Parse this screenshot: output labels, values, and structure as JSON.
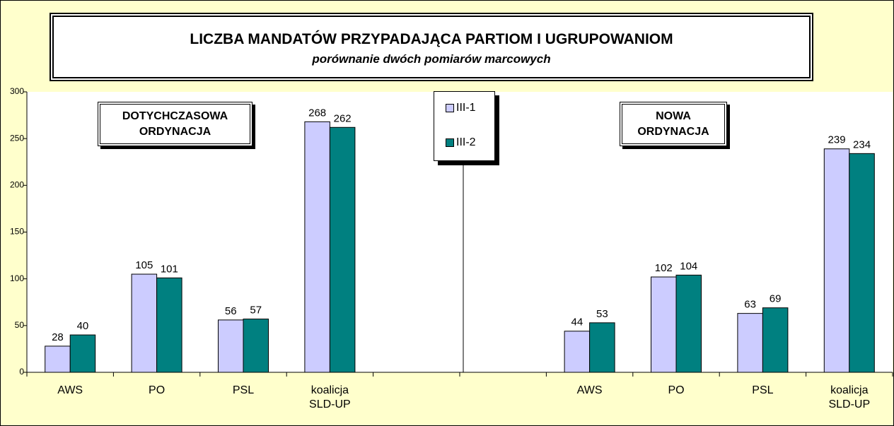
{
  "chart_data": {
    "type": "bar",
    "title": "LICZBA MANDATÓW PRZYPADAJĄCA PARTIOM I UGRUPOWANIOM",
    "subtitle": "porównanie dwóch pomiarów marcowych",
    "annotations": [
      "DOTYCHCZASOWA ORDYNACJA",
      "NOWA ORDYNACJA"
    ],
    "categories": [
      "AWS",
      "PO",
      "PSL",
      "koalicja SLD-UP",
      null,
      null,
      "AWS",
      "PO",
      "PSL",
      "koalicja SLD-UP"
    ],
    "series": [
      {
        "name": "III-1",
        "color": "#ccccff",
        "values": [
          28,
          105,
          56,
          268,
          null,
          null,
          44,
          102,
          63,
          239
        ]
      },
      {
        "name": "III-2",
        "color": "#008080",
        "values": [
          40,
          101,
          57,
          262,
          null,
          null,
          53,
          104,
          69,
          234
        ]
      }
    ],
    "ylim": [
      0,
      300
    ],
    "yticks": [
      0,
      50,
      100,
      150,
      200,
      250,
      300
    ],
    "grid": false,
    "legend": "top"
  }
}
